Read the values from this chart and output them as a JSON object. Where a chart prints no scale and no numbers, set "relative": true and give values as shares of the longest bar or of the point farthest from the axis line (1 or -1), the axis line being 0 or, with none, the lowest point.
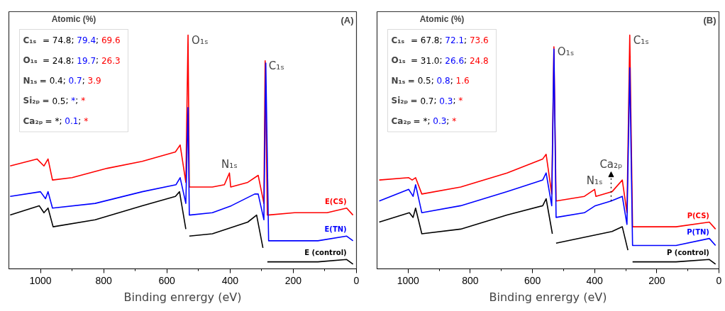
{
  "chart_data": [
    {
      "type": "line",
      "relative": true,
      "xlim": [
        1100,
        0
      ],
      "xlabel": "Binding enrergy (eV)",
      "grid": false,
      "marker": "none",
      "line_style": "solid",
      "xticks": [
        1000,
        {
          "value": 900,
          "label": null
        },
        800,
        {
          "value": 700,
          "label": null
        },
        600,
        {
          "value": 500,
          "label": null
        },
        400,
        {
          "value": 300,
          "label": null
        },
        200,
        {
          "value": 100,
          "label": null
        },
        0
      ],
      "annotations": [
        "(A)",
        "Atomic (%)",
        "C₁ₛ = 74.8; 79.4; 69.6",
        "O₁ₛ = 24.8; 19.7; 26.3",
        "N₁ₛ= 0.4; 0.7; 3.9",
        "Si₂ₚ= 0.5; *; *",
        "Ca₂ₚ= *; 0.1; *",
        {
          "text": "O₁ₛ",
          "x": 533,
          "y": 1.0
        },
        {
          "text": "C₁ₛ",
          "x": 289,
          "y": 0.89
        },
        {
          "text": "N₁ₛ",
          "x": 402,
          "y": 0.41
        }
      ],
      "series": [
        {
          "name": "E (control)",
          "color": "#000000",
          "x": [
            1096,
            1004,
            989,
            976,
            960,
            827,
            678,
            573,
            560,
            540,
            533,
            529,
            456,
            344,
            316,
            296,
            289,
            282,
            122,
            31,
            11
          ],
          "values": [
            0.23,
            0.27,
            0.24,
            0.26,
            0.18,
            0.21,
            0.27,
            0.31,
            0.33,
            0.17,
            null,
            0.14,
            0.15,
            0.2,
            0.23,
            0.09,
            null,
            0.03,
            0.03,
            0.04,
            0.02
          ]
        },
        {
          "name": "E(TN)",
          "color": "#0000ff",
          "x": [
            1096,
            1000,
            984,
            976,
            962,
            827,
            678,
            571,
            558,
            540,
            533,
            529,
            456,
            396,
            322,
            311,
            293,
            287,
            278,
            122,
            31,
            11
          ],
          "values": [
            0.31,
            0.33,
            0.3,
            0.33,
            0.26,
            0.28,
            0.33,
            0.36,
            0.39,
            0.28,
            0.69,
            0.23,
            0.24,
            0.27,
            0.32,
            0.32,
            0.21,
            0.88,
            0.12,
            0.12,
            0.14,
            0.12
          ]
        },
        {
          "name": "E(CS)",
          "color": "#ff0000",
          "x": [
            1096,
            1011,
            989,
            976,
            962,
            900,
            789,
            678,
            573,
            558,
            540,
            533,
            529,
            456,
            418,
            402,
            398,
            344,
            311,
            293,
            289,
            282,
            196,
            93,
            31,
            11
          ],
          "values": [
            0.44,
            0.47,
            0.44,
            0.47,
            0.38,
            0.39,
            0.43,
            0.46,
            0.5,
            0.53,
            0.37,
            1.0,
            0.35,
            0.35,
            0.36,
            0.41,
            0.35,
            0.37,
            0.4,
            0.28,
            0.89,
            0.23,
            0.24,
            0.24,
            0.26,
            0.23
          ]
        }
      ]
    },
    {
      "type": "line",
      "relative": true,
      "xlim": [
        1100,
        0
      ],
      "xlabel": "Binding enrergy (eV)",
      "grid": false,
      "marker": "none",
      "line_style": "solid",
      "xticks": [
        1000,
        {
          "value": 900,
          "label": null
        },
        800,
        {
          "value": 700,
          "label": null
        },
        600,
        {
          "value": 500,
          "label": null
        },
        400,
        {
          "value": 300,
          "label": null
        },
        200,
        {
          "value": 100,
          "label": null
        },
        0
      ],
      "annotations": [
        "(B)",
        "Atomic (%)",
        "C₁ₛ = 67.8; 72.1; 73.6",
        "O₁ₛ = 31.0; 26.6; 24.8",
        "N₁ₛ= 0.5; 0.8; 1.6",
        "Si₂ₚ= 0.7; 0.3; *",
        "Ca₂ₚ= *; 0.3; *",
        {
          "text": "O₁ₛ",
          "x": 531,
          "y": 0.95
        },
        {
          "text": "C₁ₛ",
          "x": 287,
          "y": 1.0
        },
        {
          "text": "N₁ₛ",
          "x": 400,
          "y": 0.34
        },
        {
          "text": "Ca₂ₚ",
          "x": 347,
          "y": 0.29
        }
      ],
      "series": [
        {
          "name": "P (control)",
          "color": "#000000",
          "x": [
            1093,
            996,
            984,
            976,
            956,
            831,
            682,
            567,
            556,
            536,
            531,
            524,
            344,
            311,
            293,
            287,
            278,
            138,
            31,
            11
          ],
          "values": [
            0.2,
            0.24,
            0.22,
            0.26,
            0.15,
            0.17,
            0.23,
            0.27,
            0.3,
            0.15,
            null,
            0.11,
            0.16,
            0.18,
            0.08,
            null,
            0.03,
            0.03,
            0.04,
            0.02
          ]
        },
        {
          "name": "P(TN)",
          "color": "#0000ff",
          "x": [
            1093,
            998,
            984,
            976,
            956,
            831,
            682,
            567,
            556,
            538,
            531,
            524,
            433,
            398,
            347,
            311,
            296,
            287,
            278,
            138,
            31,
            11
          ],
          "values": [
            0.29,
            0.34,
            0.31,
            0.36,
            0.24,
            0.27,
            0.33,
            0.38,
            0.41,
            0.27,
            0.94,
            0.22,
            0.24,
            0.27,
            0.29,
            0.31,
            0.19,
            0.86,
            0.1,
            0.1,
            0.13,
            0.1
          ]
        },
        {
          "name": "P(CS)",
          "color": "#ff0000",
          "x": [
            1093,
            998,
            987,
            976,
            956,
            831,
            682,
            567,
            556,
            538,
            531,
            524,
            433,
            400,
            396,
            344,
            311,
            296,
            287,
            278,
            138,
            31,
            11
          ],
          "values": [
            0.38,
            0.39,
            0.38,
            0.39,
            0.32,
            0.35,
            0.41,
            0.47,
            0.49,
            0.32,
            0.95,
            0.29,
            0.31,
            0.34,
            0.31,
            0.33,
            0.38,
            0.24,
            1.0,
            0.18,
            0.18,
            0.2,
            0.17
          ]
        }
      ]
    }
  ]
}
